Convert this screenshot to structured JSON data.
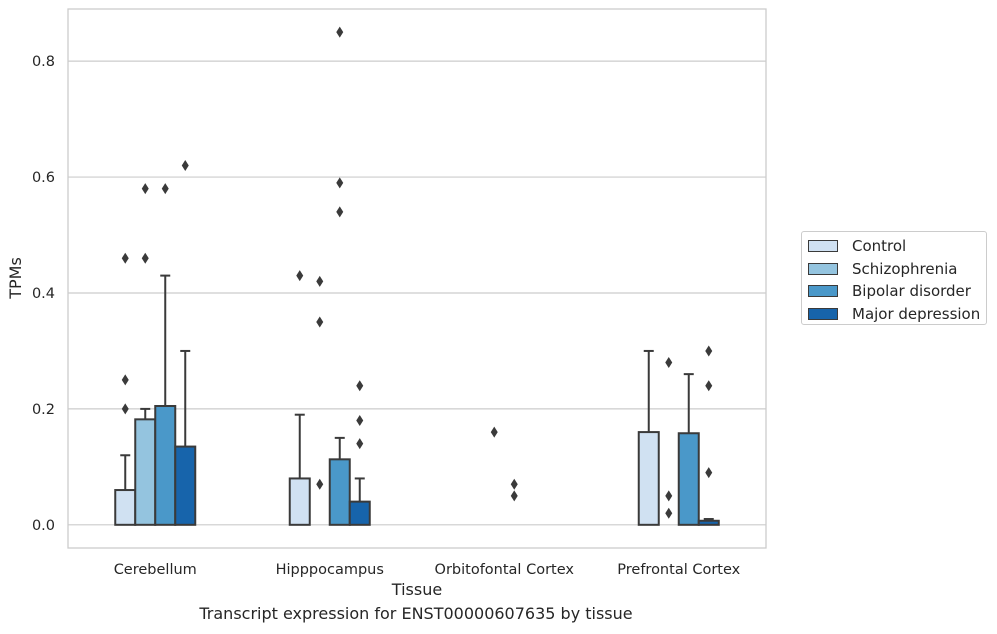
{
  "chart_data": {
    "type": "bar",
    "title": "Transcript expression for ENST00000607635 by tissue",
    "xlabel": "Tissue",
    "ylabel": "TPMs",
    "ylim": [
      -0.04,
      0.89
    ],
    "yticks": [
      "0.0",
      "0.2",
      "0.4",
      "0.6",
      "0.8"
    ],
    "grid": "horizontal",
    "legend_position": "right",
    "categories": [
      "Cerebellum",
      "Hipppocampus",
      "Orbitofontal Cortex",
      "Prefrontal Cortex"
    ],
    "series": [
      {
        "name": "Control",
        "color": "#d0e1f2",
        "values": [
          0.06,
          0.08,
          0.0,
          0.16
        ],
        "error_upper": [
          0.12,
          0.19,
          0.0,
          0.3
        ],
        "outliers": [
          [
            0.46,
            0.25,
            0.2
          ],
          [
            0.43
          ],
          [],
          []
        ]
      },
      {
        "name": "Schizophrenia",
        "color": "#94c4df",
        "values": [
          0.182,
          0.0,
          0.0,
          0.0
        ],
        "error_upper": [
          0.2,
          0.0,
          0.0,
          0.0
        ],
        "outliers": [
          [
            0.58,
            0.46
          ],
          [
            0.42,
            0.35,
            0.07
          ],
          [
            0.16
          ],
          [
            0.28,
            0.05,
            0.02
          ]
        ]
      },
      {
        "name": "Bipolar disorder",
        "color": "#4a98c9",
        "values": [
          0.205,
          0.113,
          0.0,
          0.158
        ],
        "error_upper": [
          0.43,
          0.15,
          0.0,
          0.26
        ],
        "outliers": [
          [
            0.58
          ],
          [
            0.85,
            0.59,
            0.54
          ],
          [
            0.07,
            0.05
          ],
          []
        ]
      },
      {
        "name": "Major depression",
        "color": "#1764ab",
        "values": [
          0.135,
          0.04,
          0.0,
          0.007
        ],
        "error_upper": [
          0.3,
          0.08,
          0.0,
          0.01
        ],
        "outliers": [
          [
            0.62
          ],
          [
            0.24,
            0.18,
            0.14
          ],
          [],
          [
            0.3,
            0.24,
            0.09
          ]
        ]
      }
    ]
  }
}
